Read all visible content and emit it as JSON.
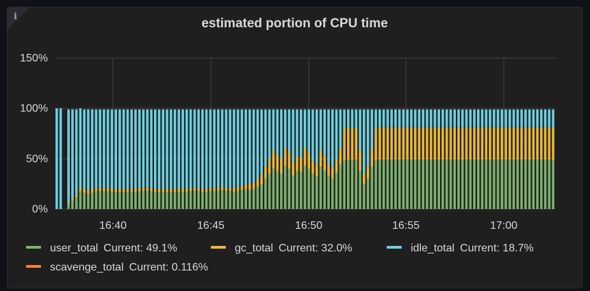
{
  "panel": {
    "title": "estimated portion of CPU time",
    "info_icon": "i"
  },
  "chart_data": {
    "type": "bar",
    "stacked": true,
    "title": "estimated portion of CPU time",
    "xlabel": "",
    "ylabel": "",
    "x_ticks": [
      "16:40",
      "16:45",
      "16:50",
      "16:55",
      "17:00"
    ],
    "y_ticks": [
      "0%",
      "50%",
      "100%",
      "150%"
    ],
    "ylim": [
      0,
      150
    ],
    "grid": true,
    "legend_position": "bottom",
    "series": [
      {
        "name": "user_total",
        "color": "#7eb26d",
        "current": "Current: 49.1%",
        "values": [
          0,
          0,
          0,
          5,
          8,
          12,
          18,
          16,
          15,
          16,
          18,
          18,
          18,
          18,
          17,
          17,
          17,
          17,
          17,
          17,
          17,
          18,
          18,
          18,
          18,
          17,
          17,
          17,
          17,
          17,
          17,
          17,
          17,
          17,
          18,
          18,
          18,
          17,
          17,
          18,
          18,
          18,
          19,
          18,
          18,
          17,
          18,
          19,
          20,
          19,
          20,
          22,
          24,
          30,
          35,
          40,
          38,
          35,
          43,
          40,
          33,
          38,
          37,
          43,
          40,
          35,
          32,
          42,
          38,
          33,
          30,
          36,
          44,
          48,
          49,
          48,
          49,
          38,
          25,
          30,
          42,
          48,
          49,
          49,
          49,
          49,
          49,
          49,
          49,
          49,
          49,
          49,
          49,
          49,
          49,
          49,
          49,
          49,
          49,
          49,
          49,
          49,
          49,
          49,
          49,
          49,
          49,
          49,
          49,
          49,
          49,
          49,
          49,
          49,
          49,
          49,
          49,
          49,
          49,
          49,
          49,
          49,
          49,
          49,
          49,
          49,
          49
        ]
      },
      {
        "name": "gc_total",
        "color": "#eab839",
        "current": "Current: 32.0%",
        "values": [
          0,
          0,
          0,
          1,
          2,
          3,
          4,
          4,
          3,
          4,
          3,
          3,
          3,
          3,
          3,
          3,
          3,
          3,
          3,
          3,
          3,
          3,
          3,
          3,
          3,
          3,
          3,
          3,
          3,
          3,
          3,
          3,
          3,
          3,
          3,
          3,
          3,
          3,
          3,
          3,
          3,
          3,
          3,
          3,
          3,
          3,
          4,
          4,
          5,
          6,
          6,
          8,
          10,
          12,
          15,
          18,
          16,
          15,
          18,
          17,
          13,
          15,
          14,
          18,
          16,
          13,
          12,
          16,
          15,
          12,
          11,
          13,
          16,
          32,
          32,
          32,
          32,
          20,
          10,
          12,
          18,
          32,
          32,
          32,
          32,
          32,
          32,
          32,
          32,
          32,
          32,
          32,
          32,
          32,
          32,
          32,
          32,
          32,
          32,
          32,
          32,
          32,
          32,
          32,
          32,
          32,
          32,
          32,
          32,
          32,
          32,
          32,
          32,
          32,
          32,
          32,
          32,
          32,
          32,
          32,
          32,
          32,
          32,
          32,
          32,
          32,
          32
        ]
      },
      {
        "name": "idle_total",
        "color": "#6ed0e0",
        "current": "Current: 18.7%",
        "values": [
          100,
          100,
          0,
          93,
          89,
          84,
          78,
          79,
          81,
          79,
          78,
          78,
          78,
          78,
          79,
          79,
          79,
          79,
          79,
          79,
          79,
          78,
          78,
          78,
          78,
          79,
          79,
          79,
          79,
          79,
          79,
          79,
          79,
          79,
          78,
          78,
          78,
          79,
          79,
          78,
          78,
          78,
          77,
          78,
          78,
          79,
          77,
          76,
          74,
          74,
          73,
          69,
          65,
          57,
          49,
          41,
          45,
          49,
          38,
          42,
          53,
          46,
          48,
          38,
          43,
          51,
          55,
          41,
          46,
          54,
          58,
          50,
          39,
          19,
          18,
          19,
          18,
          41,
          64,
          57,
          39,
          19,
          18,
          18,
          18,
          18,
          18,
          18,
          18,
          18,
          18,
          18,
          18,
          18,
          18,
          18,
          18,
          18,
          18,
          18,
          18,
          18,
          18,
          18,
          18,
          18,
          18,
          18,
          18,
          18,
          18,
          18,
          18,
          18,
          18,
          18,
          18,
          18,
          18,
          18,
          18,
          18,
          18,
          18,
          18,
          18,
          18
        ]
      },
      {
        "name": "scavenge_total",
        "color": "#ef843c",
        "current": "Current: 0.116%",
        "values": []
      }
    ]
  }
}
